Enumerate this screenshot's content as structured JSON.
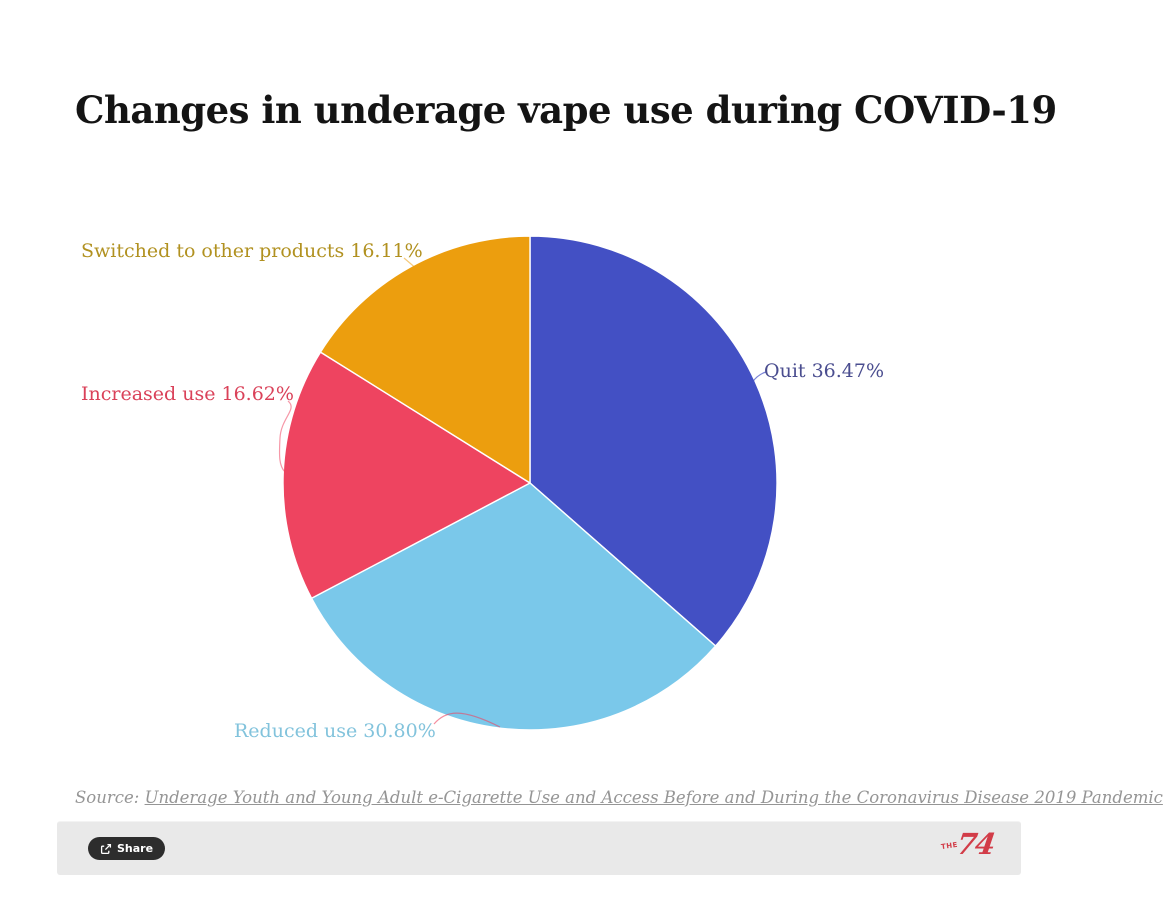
{
  "title": "Changes in underage vape use during COVID-19",
  "chart_data": {
    "type": "pie",
    "title": "Changes in underage vape use during COVID-19",
    "direction": "clockwise",
    "start_angle_deg": 0,
    "legend_position": "outside-labels",
    "slices": [
      {
        "label": "Quit",
        "value": 36.47,
        "display": "Quit 36.47%",
        "color": "#4350c4",
        "label_color": "#4a4d8f"
      },
      {
        "label": "Reduced use",
        "value": 30.8,
        "display": "Reduced use 30.80%",
        "color": "#7ac8ea",
        "label_color": "#82c3dc"
      },
      {
        "label": "Increased use",
        "value": 16.62,
        "display": "Increased use 16.62%",
        "color": "#ee4460",
        "label_color": "#da4159"
      },
      {
        "label": "Switched to other products",
        "value": 16.11,
        "display": "Switched to other products 16.11%",
        "color": "#ec9e0e",
        "label_color": "#b19120"
      }
    ]
  },
  "source": {
    "prefix": "Source: ",
    "link_text": "Underage Youth and Young Adult e-Cigarette Use and Access Before and During the Coronavirus Disease 2019 Pandemic"
  },
  "footer": {
    "share_label": "Share",
    "logo_the": "THE",
    "logo_number": "74"
  },
  "colors": {
    "title": "#141414",
    "source_text": "#959595",
    "footer_bar": "#e9e9e9",
    "share_button_bg": "#2d2d2d",
    "logo_red": "#d23c48",
    "slice_separator": "#ffffff"
  }
}
